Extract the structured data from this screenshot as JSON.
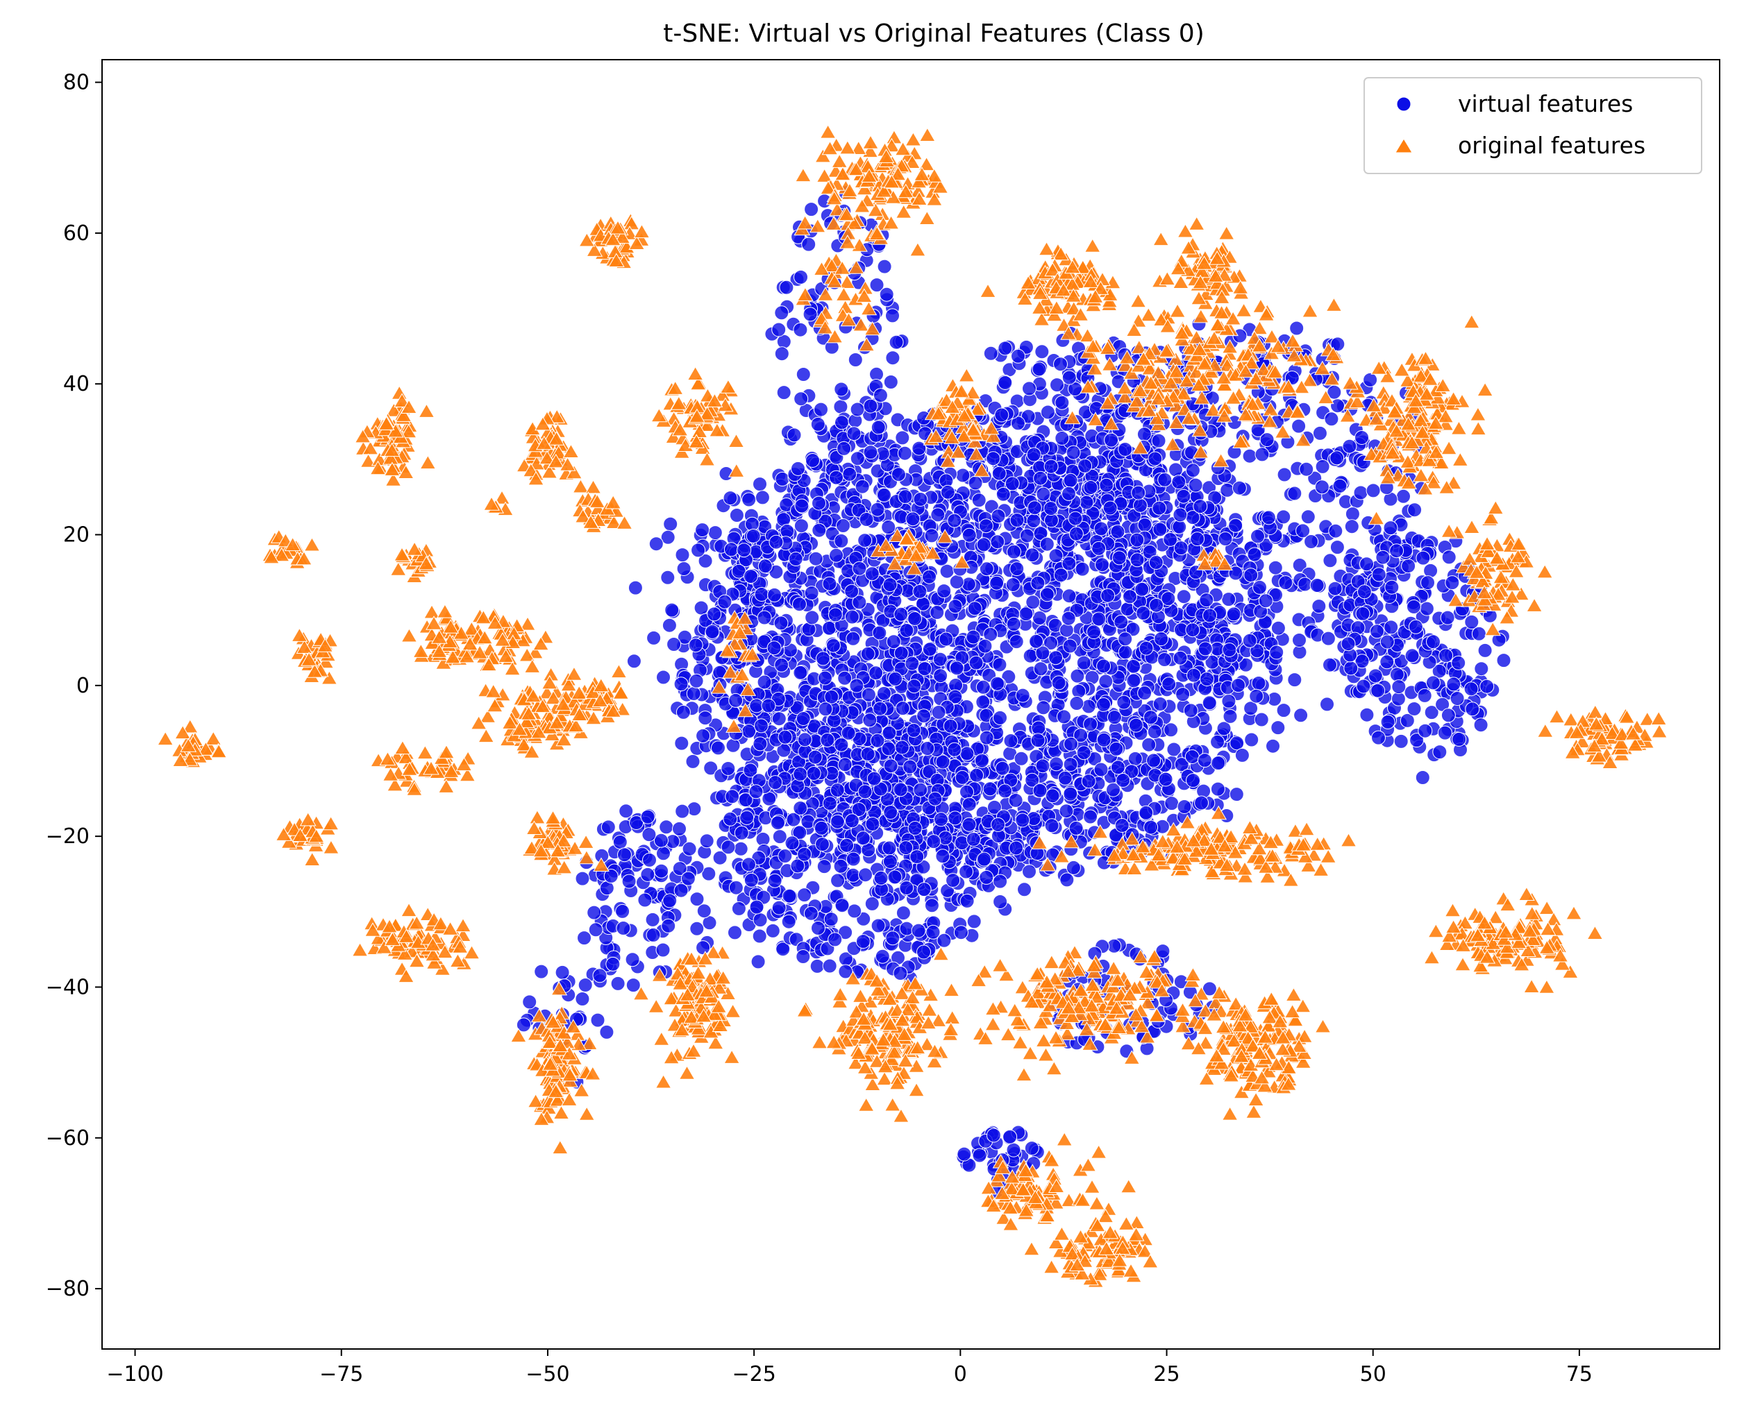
{
  "chart_data": {
    "type": "scatter",
    "title": "t-SNE: Virtual vs Original Features (Class 0)",
    "xlabel": "",
    "ylabel": "",
    "xlim": [
      -104,
      92
    ],
    "ylim": [
      -88,
      83
    ],
    "xticks": [
      -100,
      -75,
      -50,
      -25,
      0,
      25,
      50,
      75
    ],
    "yticks": [
      -80,
      -60,
      -40,
      -20,
      0,
      20,
      40,
      60,
      80
    ],
    "xtick_labels": [
      "−100",
      "−75",
      "−50",
      "−25",
      "0",
      "25",
      "50",
      "75"
    ],
    "ytick_labels": [
      "−80",
      "−60",
      "−40",
      "−20",
      "0",
      "20",
      "40",
      "60",
      "80"
    ],
    "grid": false,
    "legend_position": "upper-right",
    "series": [
      {
        "name": "virtual features",
        "marker": "circle",
        "color": "#0c0ee6",
        "clusters": [
          {
            "cx": 2,
            "cy": 5,
            "rx": 36,
            "ry": 30,
            "n": 2600
          },
          {
            "cx": -12,
            "cy": -20,
            "rx": 18,
            "ry": 18,
            "n": 500
          },
          {
            "cx": 35,
            "cy": 25,
            "rx": 22,
            "ry": 22,
            "n": 400
          },
          {
            "cx": -15,
            "cy": 45,
            "rx": 8,
            "ry": 20,
            "n": 120
          },
          {
            "cx": 15,
            "cy": 35,
            "rx": 15,
            "ry": 12,
            "n": 200
          },
          {
            "cx": 55,
            "cy": 5,
            "rx": 10,
            "ry": 15,
            "n": 250
          },
          {
            "cx": 5,
            "cy": -63,
            "rx": 5,
            "ry": 4,
            "n": 40
          },
          {
            "cx": 20,
            "cy": -42,
            "rx": 10,
            "ry": 8,
            "n": 80
          },
          {
            "cx": -48,
            "cy": -45,
            "rx": 5,
            "ry": 8,
            "n": 30
          },
          {
            "cx": -38,
            "cy": -28,
            "rx": 8,
            "ry": 12,
            "n": 120
          }
        ]
      },
      {
        "name": "original features",
        "marker": "triangle",
        "color": "#ff7f0e",
        "clusters": [
          {
            "cx": -10,
            "cy": 66,
            "rx": 7,
            "ry": 6,
            "n": 120
          },
          {
            "cx": -14,
            "cy": 52,
            "rx": 4,
            "ry": 5,
            "n": 30
          },
          {
            "cx": -42,
            "cy": 59,
            "rx": 3,
            "ry": 3,
            "n": 40
          },
          {
            "cx": -32,
            "cy": 36,
            "rx": 4,
            "ry": 5,
            "n": 60
          },
          {
            "cx": -69,
            "cy": 33,
            "rx": 3,
            "ry": 4,
            "n": 70
          },
          {
            "cx": -50,
            "cy": 32,
            "rx": 3,
            "ry": 4,
            "n": 50
          },
          {
            "cx": -44,
            "cy": 23,
            "rx": 3,
            "ry": 2,
            "n": 25
          },
          {
            "cx": -56,
            "cy": 24,
            "rx": 2,
            "ry": 1,
            "n": 6
          },
          {
            "cx": -66,
            "cy": 16,
            "rx": 2,
            "ry": 2,
            "n": 20
          },
          {
            "cx": -82,
            "cy": 18,
            "rx": 2,
            "ry": 1.5,
            "n": 18
          },
          {
            "cx": -78,
            "cy": 4,
            "rx": 2,
            "ry": 3,
            "n": 30
          },
          {
            "cx": -59,
            "cy": 6,
            "rx": 7,
            "ry": 3,
            "n": 90
          },
          {
            "cx": -51,
            "cy": -4,
            "rx": 5,
            "ry": 4,
            "n": 90
          },
          {
            "cx": -44,
            "cy": -2,
            "rx": 3,
            "ry": 3,
            "n": 40
          },
          {
            "cx": -93,
            "cy": -8,
            "rx": 3,
            "ry": 2,
            "n": 25
          },
          {
            "cx": -65,
            "cy": -11,
            "rx": 5,
            "ry": 2,
            "n": 40
          },
          {
            "cx": -79,
            "cy": -20,
            "rx": 3,
            "ry": 2,
            "n": 30
          },
          {
            "cx": -49,
            "cy": -21,
            "rx": 3,
            "ry": 3,
            "n": 40
          },
          {
            "cx": -66,
            "cy": -34,
            "rx": 5,
            "ry": 3,
            "n": 80
          },
          {
            "cx": -49,
            "cy": -50,
            "rx": 3,
            "ry": 7,
            "n": 100
          },
          {
            "cx": -32,
            "cy": -42,
            "rx": 4,
            "ry": 6,
            "n": 110
          },
          {
            "cx": -27,
            "cy": 3,
            "rx": 2,
            "ry": 6,
            "n": 20
          },
          {
            "cx": -9,
            "cy": -47,
            "rx": 6,
            "ry": 8,
            "n": 150
          },
          {
            "cx": 0,
            "cy": 35,
            "rx": 4,
            "ry": 5,
            "n": 50
          },
          {
            "cx": 13,
            "cy": 53,
            "rx": 5,
            "ry": 4,
            "n": 80
          },
          {
            "cx": 30,
            "cy": 55,
            "rx": 4,
            "ry": 4,
            "n": 60
          },
          {
            "cx": 28,
            "cy": 42,
            "rx": 14,
            "ry": 8,
            "n": 220
          },
          {
            "cx": 55,
            "cy": 35,
            "rx": 6,
            "ry": 8,
            "n": 150
          },
          {
            "cx": 64,
            "cy": 15,
            "rx": 5,
            "ry": 6,
            "n": 70
          },
          {
            "cx": -6,
            "cy": 18,
            "rx": 3,
            "ry": 2,
            "n": 25
          },
          {
            "cx": 31,
            "cy": 17,
            "rx": 1.5,
            "ry": 1.5,
            "n": 8
          },
          {
            "cx": 78,
            "cy": -7,
            "rx": 6,
            "ry": 3,
            "n": 70
          },
          {
            "cx": 66,
            "cy": -34,
            "rx": 7,
            "ry": 4,
            "n": 110
          },
          {
            "cx": 30,
            "cy": -22,
            "rx": 13,
            "ry": 3,
            "n": 160
          },
          {
            "cx": 15,
            "cy": -42,
            "rx": 12,
            "ry": 6,
            "n": 180
          },
          {
            "cx": 36,
            "cy": -48,
            "rx": 6,
            "ry": 6,
            "n": 140
          },
          {
            "cx": 8,
            "cy": -67,
            "rx": 6,
            "ry": 4,
            "n": 80
          },
          {
            "cx": 17,
            "cy": -75,
            "rx": 5,
            "ry": 4,
            "n": 70
          }
        ]
      }
    ]
  }
}
